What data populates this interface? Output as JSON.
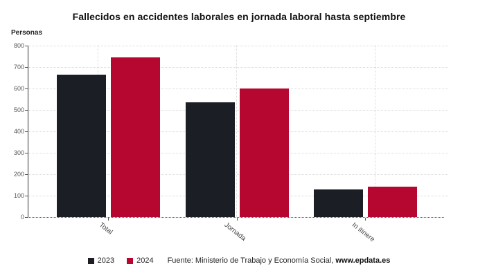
{
  "title": "Fallecidos en accidentes laborales en jornada laboral hasta septiembre",
  "chart_data": {
    "type": "bar",
    "title": "Fallecidos en accidentes laborales en jornada laboral hasta septiembre",
    "ylabel": "Personas",
    "xlabel": "",
    "categories": [
      "Total",
      "Jornada",
      "In itinere"
    ],
    "series": [
      {
        "name": "2023",
        "color": "#1b1e24",
        "values": [
          665,
          537,
          128
        ]
      },
      {
        "name": "2024",
        "color": "#b50730",
        "values": [
          744,
          601,
          143
        ]
      }
    ],
    "ylim": [
      0,
      800
    ],
    "ytick_step": 100,
    "yticks": [
      0,
      100,
      200,
      300,
      400,
      500,
      600,
      700,
      800
    ],
    "grid": true,
    "legend_position": "bottom"
  },
  "footer": {
    "source_label": "Fuente: Ministerio de Trabajo y Economía Social, ",
    "source_site": "www.epdata.es"
  },
  "colors": {
    "series_2023": "#1b1e24",
    "series_2024": "#b50730",
    "axis": "#2f2f2f",
    "gridline": "#d9d9d9",
    "tick_text": "#555555"
  }
}
